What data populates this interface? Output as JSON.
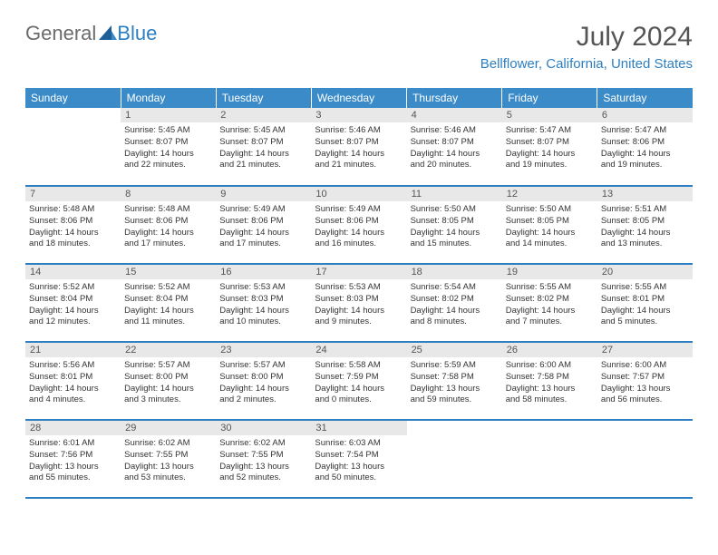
{
  "brand": {
    "part1": "General",
    "part2": "Blue"
  },
  "title": "July 2024",
  "location": "Bellflower, California, United States",
  "colors": {
    "header_bg": "#3b8bc9",
    "header_text": "#ffffff",
    "border": "#2d7fc1",
    "brand_blue": "#2d7fc1",
    "brand_gray": "#6b6b6b",
    "daynum_bg": "#e8e8e8",
    "daynum_text": "#555555",
    "body_text": "#333333",
    "title_text": "#555555"
  },
  "weekdays": [
    "Sunday",
    "Monday",
    "Tuesday",
    "Wednesday",
    "Thursday",
    "Friday",
    "Saturday"
  ],
  "weeks": [
    [
      {
        "n": "",
        "lines": []
      },
      {
        "n": "1",
        "lines": [
          "Sunrise: 5:45 AM",
          "Sunset: 8:07 PM",
          "Daylight: 14 hours",
          "and 22 minutes."
        ]
      },
      {
        "n": "2",
        "lines": [
          "Sunrise: 5:45 AM",
          "Sunset: 8:07 PM",
          "Daylight: 14 hours",
          "and 21 minutes."
        ]
      },
      {
        "n": "3",
        "lines": [
          "Sunrise: 5:46 AM",
          "Sunset: 8:07 PM",
          "Daylight: 14 hours",
          "and 21 minutes."
        ]
      },
      {
        "n": "4",
        "lines": [
          "Sunrise: 5:46 AM",
          "Sunset: 8:07 PM",
          "Daylight: 14 hours",
          "and 20 minutes."
        ]
      },
      {
        "n": "5",
        "lines": [
          "Sunrise: 5:47 AM",
          "Sunset: 8:07 PM",
          "Daylight: 14 hours",
          "and 19 minutes."
        ]
      },
      {
        "n": "6",
        "lines": [
          "Sunrise: 5:47 AM",
          "Sunset: 8:06 PM",
          "Daylight: 14 hours",
          "and 19 minutes."
        ]
      }
    ],
    [
      {
        "n": "7",
        "lines": [
          "Sunrise: 5:48 AM",
          "Sunset: 8:06 PM",
          "Daylight: 14 hours",
          "and 18 minutes."
        ]
      },
      {
        "n": "8",
        "lines": [
          "Sunrise: 5:48 AM",
          "Sunset: 8:06 PM",
          "Daylight: 14 hours",
          "and 17 minutes."
        ]
      },
      {
        "n": "9",
        "lines": [
          "Sunrise: 5:49 AM",
          "Sunset: 8:06 PM",
          "Daylight: 14 hours",
          "and 17 minutes."
        ]
      },
      {
        "n": "10",
        "lines": [
          "Sunrise: 5:49 AM",
          "Sunset: 8:06 PM",
          "Daylight: 14 hours",
          "and 16 minutes."
        ]
      },
      {
        "n": "11",
        "lines": [
          "Sunrise: 5:50 AM",
          "Sunset: 8:05 PM",
          "Daylight: 14 hours",
          "and 15 minutes."
        ]
      },
      {
        "n": "12",
        "lines": [
          "Sunrise: 5:50 AM",
          "Sunset: 8:05 PM",
          "Daylight: 14 hours",
          "and 14 minutes."
        ]
      },
      {
        "n": "13",
        "lines": [
          "Sunrise: 5:51 AM",
          "Sunset: 8:05 PM",
          "Daylight: 14 hours",
          "and 13 minutes."
        ]
      }
    ],
    [
      {
        "n": "14",
        "lines": [
          "Sunrise: 5:52 AM",
          "Sunset: 8:04 PM",
          "Daylight: 14 hours",
          "and 12 minutes."
        ]
      },
      {
        "n": "15",
        "lines": [
          "Sunrise: 5:52 AM",
          "Sunset: 8:04 PM",
          "Daylight: 14 hours",
          "and 11 minutes."
        ]
      },
      {
        "n": "16",
        "lines": [
          "Sunrise: 5:53 AM",
          "Sunset: 8:03 PM",
          "Daylight: 14 hours",
          "and 10 minutes."
        ]
      },
      {
        "n": "17",
        "lines": [
          "Sunrise: 5:53 AM",
          "Sunset: 8:03 PM",
          "Daylight: 14 hours",
          "and 9 minutes."
        ]
      },
      {
        "n": "18",
        "lines": [
          "Sunrise: 5:54 AM",
          "Sunset: 8:02 PM",
          "Daylight: 14 hours",
          "and 8 minutes."
        ]
      },
      {
        "n": "19",
        "lines": [
          "Sunrise: 5:55 AM",
          "Sunset: 8:02 PM",
          "Daylight: 14 hours",
          "and 7 minutes."
        ]
      },
      {
        "n": "20",
        "lines": [
          "Sunrise: 5:55 AM",
          "Sunset: 8:01 PM",
          "Daylight: 14 hours",
          "and 5 minutes."
        ]
      }
    ],
    [
      {
        "n": "21",
        "lines": [
          "Sunrise: 5:56 AM",
          "Sunset: 8:01 PM",
          "Daylight: 14 hours",
          "and 4 minutes."
        ]
      },
      {
        "n": "22",
        "lines": [
          "Sunrise: 5:57 AM",
          "Sunset: 8:00 PM",
          "Daylight: 14 hours",
          "and 3 minutes."
        ]
      },
      {
        "n": "23",
        "lines": [
          "Sunrise: 5:57 AM",
          "Sunset: 8:00 PM",
          "Daylight: 14 hours",
          "and 2 minutes."
        ]
      },
      {
        "n": "24",
        "lines": [
          "Sunrise: 5:58 AM",
          "Sunset: 7:59 PM",
          "Daylight: 14 hours",
          "and 0 minutes."
        ]
      },
      {
        "n": "25",
        "lines": [
          "Sunrise: 5:59 AM",
          "Sunset: 7:58 PM",
          "Daylight: 13 hours",
          "and 59 minutes."
        ]
      },
      {
        "n": "26",
        "lines": [
          "Sunrise: 6:00 AM",
          "Sunset: 7:58 PM",
          "Daylight: 13 hours",
          "and 58 minutes."
        ]
      },
      {
        "n": "27",
        "lines": [
          "Sunrise: 6:00 AM",
          "Sunset: 7:57 PM",
          "Daylight: 13 hours",
          "and 56 minutes."
        ]
      }
    ],
    [
      {
        "n": "28",
        "lines": [
          "Sunrise: 6:01 AM",
          "Sunset: 7:56 PM",
          "Daylight: 13 hours",
          "and 55 minutes."
        ]
      },
      {
        "n": "29",
        "lines": [
          "Sunrise: 6:02 AM",
          "Sunset: 7:55 PM",
          "Daylight: 13 hours",
          "and 53 minutes."
        ]
      },
      {
        "n": "30",
        "lines": [
          "Sunrise: 6:02 AM",
          "Sunset: 7:55 PM",
          "Daylight: 13 hours",
          "and 52 minutes."
        ]
      },
      {
        "n": "31",
        "lines": [
          "Sunrise: 6:03 AM",
          "Sunset: 7:54 PM",
          "Daylight: 13 hours",
          "and 50 minutes."
        ]
      },
      {
        "n": "",
        "lines": []
      },
      {
        "n": "",
        "lines": []
      },
      {
        "n": "",
        "lines": []
      }
    ]
  ]
}
